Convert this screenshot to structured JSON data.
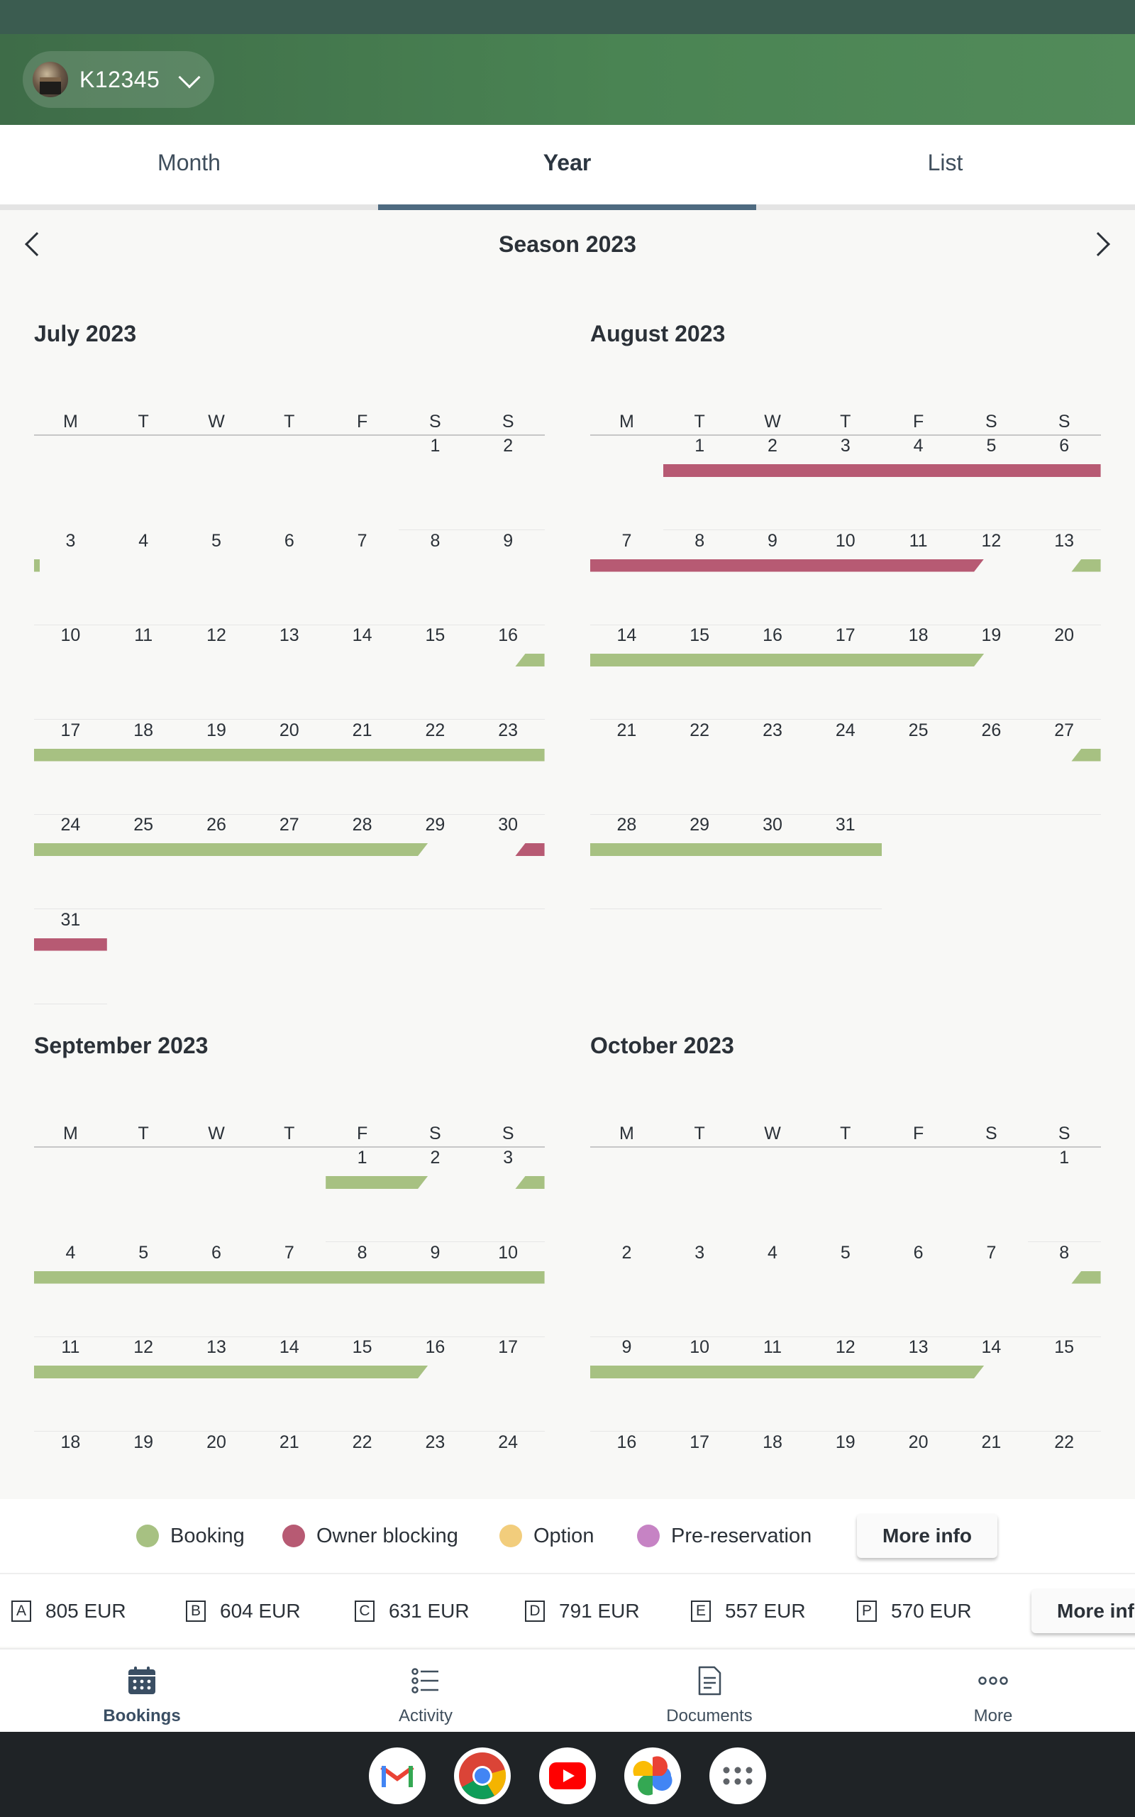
{
  "header": {
    "property_code": "K12345"
  },
  "tabs": [
    {
      "label": "Month",
      "active": false
    },
    {
      "label": "Year",
      "active": true
    },
    {
      "label": "List",
      "active": false
    }
  ],
  "season": {
    "title": "Season 2023"
  },
  "weekdays": [
    "M",
    "T",
    "W",
    "T",
    "F",
    "S",
    "S"
  ],
  "months": [
    {
      "title": "July 2023",
      "first_weekday": 5,
      "days": 31,
      "bars": [
        {
          "type": "booking",
          "from": 3,
          "to": 3,
          "start": "end"
        },
        {
          "type": "booking",
          "from": 16,
          "to": 29,
          "start": "mid",
          "end": "mid"
        },
        {
          "type": "owner",
          "from": 30,
          "to": 31,
          "start": "mid",
          "end": "full"
        }
      ]
    },
    {
      "title": "August 2023",
      "first_weekday": 1,
      "days": 31,
      "bars": [
        {
          "type": "owner",
          "from": 1,
          "to": 12,
          "start": "full",
          "end": "mid"
        },
        {
          "type": "booking",
          "from": 13,
          "to": 19,
          "start": "mid",
          "end": "mid"
        },
        {
          "type": "booking",
          "from": 27,
          "to": 31,
          "start": "mid",
          "end": "full"
        }
      ]
    },
    {
      "title": "September 2023",
      "first_weekday": 4,
      "days": 30,
      "bars": [
        {
          "type": "booking",
          "from": 1,
          "to": 2,
          "start": "full",
          "end": "mid"
        },
        {
          "type": "booking",
          "from": 3,
          "to": 16,
          "start": "mid",
          "end": "mid"
        }
      ]
    },
    {
      "title": "October 2023",
      "first_weekday": 6,
      "days": 31,
      "bars": [
        {
          "type": "booking",
          "from": 8,
          "to": 14,
          "start": "mid",
          "end": "mid"
        }
      ]
    }
  ],
  "legend": {
    "items": [
      {
        "label": "Booking",
        "color": "#a7c182"
      },
      {
        "label": "Owner blocking",
        "color": "#b75a73"
      },
      {
        "label": "Option",
        "color": "#f2cd7c"
      },
      {
        "label": "Pre-reservation",
        "color": "#c683c4"
      }
    ],
    "more_info": "More info"
  },
  "prices": {
    "items": [
      {
        "category": "A",
        "amount": "805 EUR"
      },
      {
        "category": "B",
        "amount": "604 EUR"
      },
      {
        "category": "C",
        "amount": "631 EUR"
      },
      {
        "category": "D",
        "amount": "791 EUR"
      },
      {
        "category": "E",
        "amount": "557 EUR"
      },
      {
        "category": "P",
        "amount": "570 EUR"
      }
    ],
    "more_info": "More info"
  },
  "bottom_nav": [
    {
      "label": "Bookings",
      "icon": "calendar-icon",
      "active": true
    },
    {
      "label": "Activity",
      "icon": "list-icon",
      "active": false
    },
    {
      "label": "Documents",
      "icon": "document-icon",
      "active": false
    },
    {
      "label": "More",
      "icon": "more-dots-icon",
      "active": false
    }
  ],
  "dock": [
    "gmail-icon",
    "chrome-icon",
    "youtube-icon",
    "photos-icon",
    "app-drawer-icon"
  ]
}
